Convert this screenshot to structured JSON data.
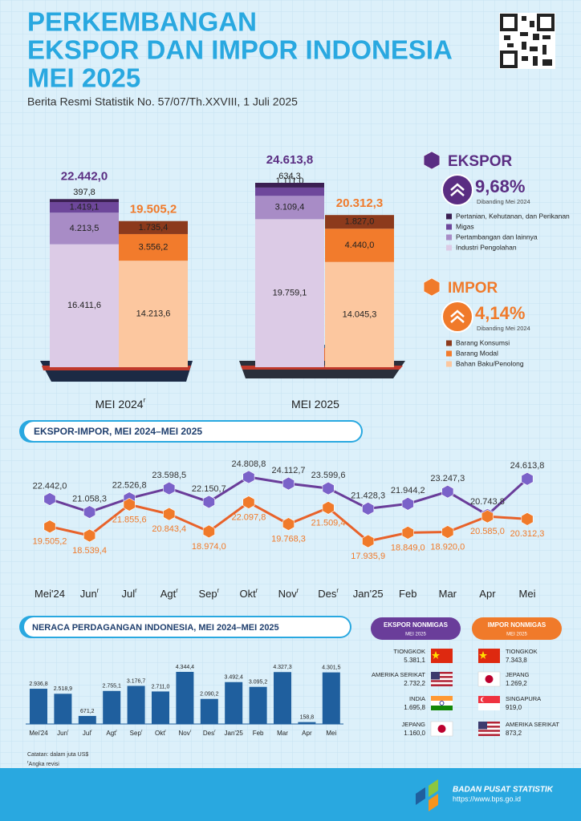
{
  "header": {
    "title": [
      "PERKEMBANGAN",
      "EKSPOR DAN IMPOR INDONESIA",
      "MEI 2025"
    ],
    "subtitle": "Berita Resmi Statistik No. 57/07/Th.XXVIII, 1 Juli 2025"
  },
  "revision_mark": "r",
  "chart_data": [
    {
      "type": "bar",
      "stacked": true,
      "categories": [
        "MEI 2024",
        "MEI 2025"
      ],
      "revised": [
        true,
        false
      ],
      "groups": [
        {
          "name": "EKSPOR",
          "color": "#5a2d82",
          "change": "9,68%",
          "change_note": "Dibanding Mei 2024",
          "totals": [
            22442.0,
            24613.8
          ],
          "totals_labels": [
            "22.442,0",
            "24.613,8"
          ],
          "series": [
            {
              "name": "Industri Pengolahan",
              "color": "#dccbe6",
              "values": [
                16411.6,
                19759.1
              ],
              "value_labels": [
                "16.411,6",
                "19.759,1"
              ]
            },
            {
              "name": "Pertambangan dan lainnya",
              "color": "#a88cc6",
              "values": [
                4213.5,
                3109.4
              ],
              "value_labels": [
                "4.213,5",
                "3.109,4"
              ]
            },
            {
              "name": "Migas",
              "color": "#6e479b",
              "values": [
                1419.1,
                1111.0
              ],
              "value_labels": [
                "1.419,1",
                "1.111,0"
              ]
            },
            {
              "name": "Pertanian, Kehutanan, dan Perikanan",
              "color": "#3b1f52",
              "values": [
                397.8,
                634.3
              ],
              "value_labels": [
                "397,8",
                "634,3"
              ]
            }
          ]
        },
        {
          "name": "IMPOR",
          "color": "#f07a2a",
          "change": "4,14%",
          "change_note": "Dibanding Mei 2024",
          "totals": [
            19505.2,
            20312.3
          ],
          "totals_labels": [
            "19.505,2",
            "20.312,3"
          ],
          "series": [
            {
              "name": "Bahan Baku/Penolong",
              "color": "#fcc79f",
              "values": [
                14213.6,
                14045.3
              ],
              "value_labels": [
                "14.213,6",
                "14.045,3"
              ]
            },
            {
              "name": "Barang Modal",
              "color": "#f27b2c",
              "values": [
                3556.2,
                4440.0
              ],
              "value_labels": [
                "3.556,2",
                "4.440,0"
              ]
            },
            {
              "name": "Barang Konsumsi",
              "color": "#8c3a1c",
              "values": [
                1735.4,
                1827.0
              ],
              "value_labels": [
                "1.735,4",
                "1.827,0"
              ]
            }
          ]
        }
      ]
    },
    {
      "type": "line",
      "title": "EKSPOR-IMPOR, MEI 2024–MEI 2025",
      "categories": [
        "Mei'24",
        "Jun",
        "Jul",
        "Agt",
        "Sep",
        "Okt",
        "Nov",
        "Des",
        "Jan'25",
        "Feb",
        "Mar",
        "Apr",
        "Mei"
      ],
      "revised": [
        false,
        true,
        true,
        true,
        true,
        true,
        true,
        true,
        false,
        false,
        false,
        false,
        false
      ],
      "series": [
        {
          "color": "#6a3d9a",
          "marker_color": "#7a62c9",
          "values": [
            22442.0,
            21058.3,
            22526.8,
            23598.5,
            22150.7,
            24808.8,
            24112.7,
            23599.6,
            21428.3,
            21944.2,
            23247.3,
            20743.8,
            24613.8
          ],
          "value_labels": [
            "22.442,0",
            "21.058,3",
            "22.526,8",
            "23.598,5",
            "22.150,7",
            "24.808,8",
            "24.112,7",
            "23.599,6",
            "21.428,3",
            "21.944,2",
            "23.247,3",
            "20.743,8",
            "24.613,8"
          ]
        },
        {
          "color": "#e8622a",
          "marker_color": "#f07a2a",
          "values": [
            19505.2,
            18539.4,
            21855.6,
            20843.4,
            18974.0,
            22097.8,
            19768.3,
            21509.4,
            17935.9,
            18849.0,
            18920.0,
            20585.0,
            20312.3
          ],
          "value_labels": [
            "19.505,2",
            "18.539,4",
            "21.855,6",
            "20.843,4",
            "18.974,0",
            "22.097,8",
            "19.768,3",
            "21.509,4",
            "17.935,9",
            "18.849,0",
            "18.920,0",
            "20.585,0",
            "20.312,3"
          ]
        }
      ]
    },
    {
      "type": "bar",
      "title": "NERACA PERDAGANGAN INDONESIA, MEI 2024–MEI 2025",
      "categories": [
        "Mei'24",
        "Jun",
        "Jul",
        "Agt",
        "Sep",
        "Okt",
        "Nov",
        "Des",
        "Jan'25",
        "Feb",
        "Mar",
        "Apr",
        "Mei"
      ],
      "revised": [
        false,
        true,
        true,
        true,
        true,
        true,
        true,
        true,
        false,
        false,
        false,
        false,
        false
      ],
      "color": "#1f5f9e",
      "values": [
        2936.8,
        2518.9,
        671.2,
        2755.1,
        3176.7,
        2711.0,
        4344.4,
        2090.2,
        3492.4,
        3095.2,
        4327.3,
        158.8,
        4301.5
      ],
      "value_labels": [
        "2.936,8",
        "2.518,9",
        "671,2",
        "2.755,1",
        "3.176,7",
        "2.711,0",
        "4.344,4",
        "2.090,2",
        "3.492,4",
        "3.095,2",
        "4.327,3",
        "158,8",
        "4.301,5"
      ],
      "note": "Catatan: dalam juta US$",
      "revision_note": "Angka revisi"
    }
  ],
  "partners": {
    "ekspor": {
      "title": "EKSPOR NONMIGAS",
      "period": "MEI 2025",
      "rows": [
        {
          "country": "TIONGKOK",
          "value": "5.381,1"
        },
        {
          "country": "AMERIKA SERIKAT",
          "value": "2.732,2"
        },
        {
          "country": "INDIA",
          "value": "1.695,8"
        },
        {
          "country": "JEPANG",
          "value": "1.160,0"
        }
      ]
    },
    "impor": {
      "title": "IMPOR NONMIGAS",
      "period": "MEI 2025",
      "rows": [
        {
          "country": "TIONGKOK",
          "value": "7.343,8"
        },
        {
          "country": "JEPANG",
          "value": "1.269,2"
        },
        {
          "country": "SINGAPURA",
          "value": "919,0"
        },
        {
          "country": "AMERIKA SERIKAT",
          "value": "873,2"
        }
      ]
    }
  },
  "footer": {
    "org": "BADAN PUSAT STATISTIK",
    "url": "https://www.bps.go.id"
  }
}
